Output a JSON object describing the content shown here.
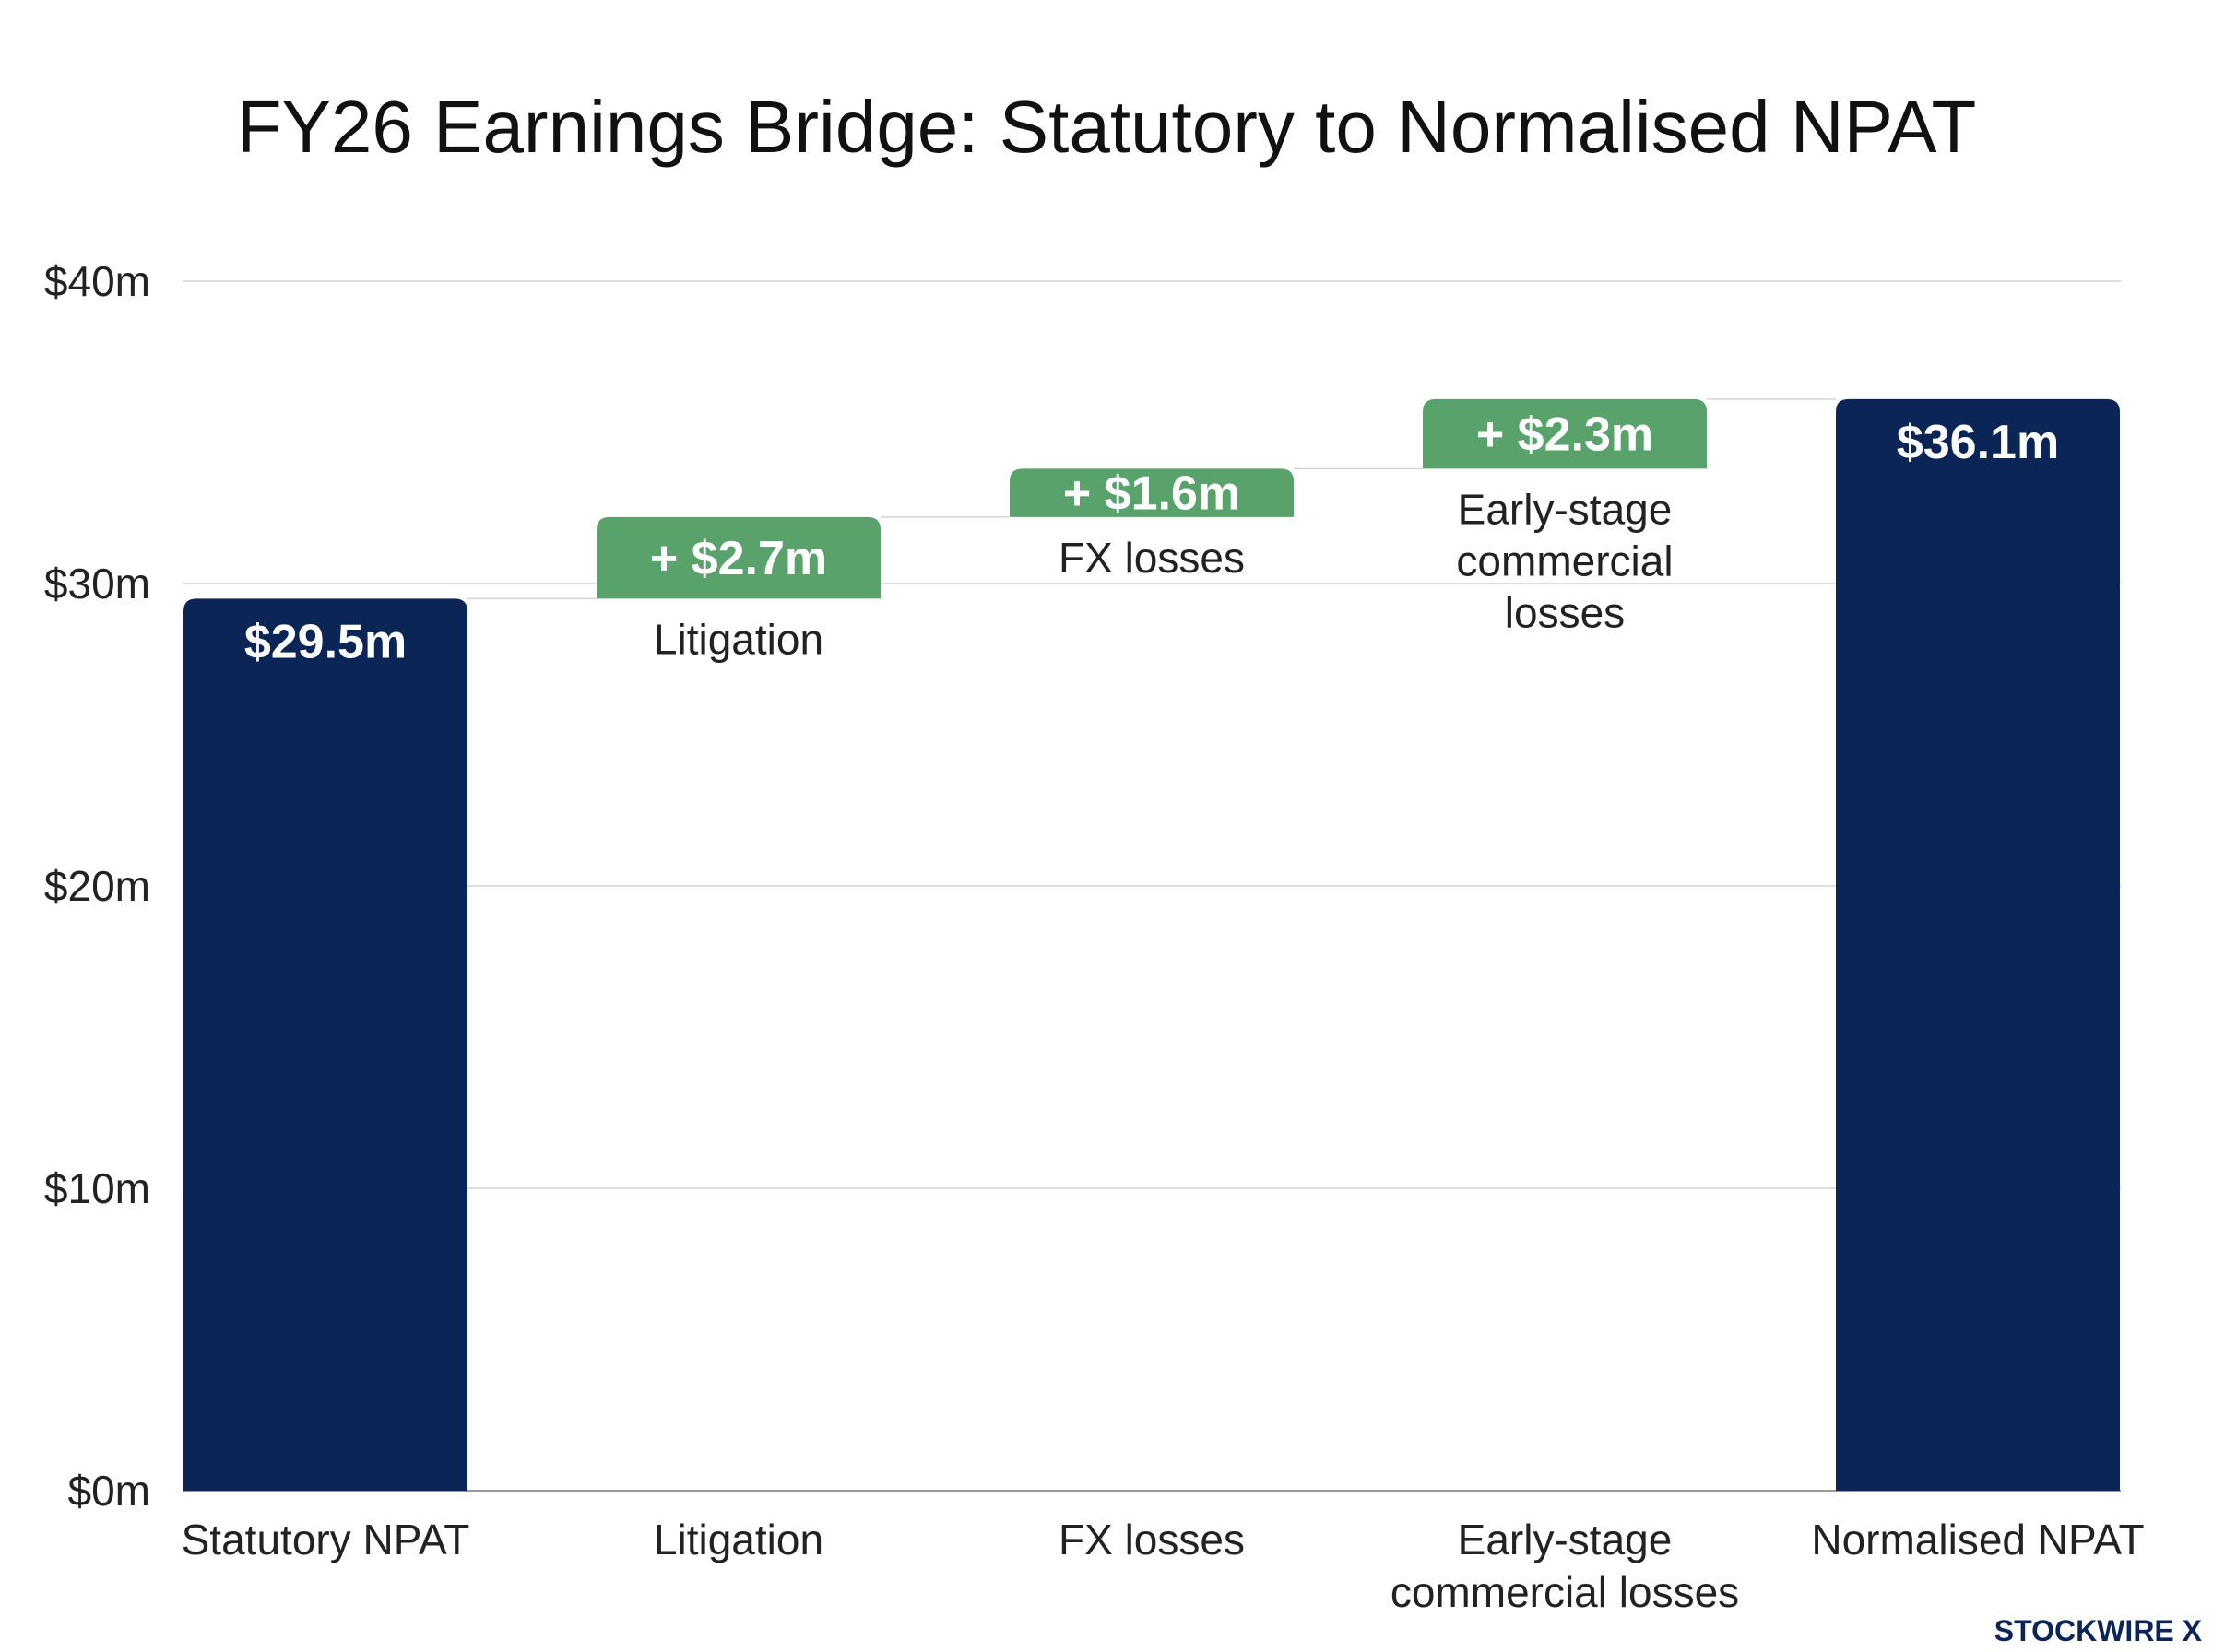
{
  "brand": "STOCKWIRE X",
  "colors": {
    "total_bar": "#0c2557",
    "increase_bar": "#5aa26c",
    "grid": "#d4d4d4",
    "axis": "#9a9a9a",
    "text": "#222222"
  },
  "chart_data": {
    "type": "bar",
    "subtype": "waterfall",
    "title": "FY26 Earnings Bridge: Statutory to Normalised NPAT",
    "xlabel": "",
    "ylabel": "",
    "ylim": [
      0,
      40
    ],
    "yticks": [
      0,
      10,
      20,
      30,
      40
    ],
    "ytick_labels": [
      "$0m",
      "$10m",
      "$20m",
      "$30m",
      "$40m"
    ],
    "grid": true,
    "legend": "none",
    "bars": [
      {
        "kind": "total",
        "category": [
          "Statutory NPAT"
        ],
        "value": 29.5,
        "start": 0,
        "end": 29.5,
        "value_label": "$29.5m",
        "inline_label": []
      },
      {
        "kind": "increase",
        "category": [
          "Litigation"
        ],
        "value": 2.7,
        "start": 29.5,
        "end": 32.2,
        "value_label": "+ $2.7m",
        "inline_label": [
          "Litigation"
        ]
      },
      {
        "kind": "increase",
        "category": [
          "FX losses"
        ],
        "value": 1.6,
        "start": 32.2,
        "end": 33.8,
        "value_label": "+ $1.6m",
        "inline_label": [
          "FX losses"
        ]
      },
      {
        "kind": "increase",
        "category": [
          "Early-stage",
          "commercial losses"
        ],
        "value": 2.3,
        "start": 33.8,
        "end": 36.1,
        "value_label": "+ $2.3m",
        "inline_label": [
          "Early-stage",
          "commercial",
          "losses"
        ]
      },
      {
        "kind": "total",
        "category": [
          "Normalised NPAT"
        ],
        "value": 36.1,
        "start": 0,
        "end": 36.1,
        "value_label": "$36.1m",
        "inline_label": []
      }
    ]
  }
}
